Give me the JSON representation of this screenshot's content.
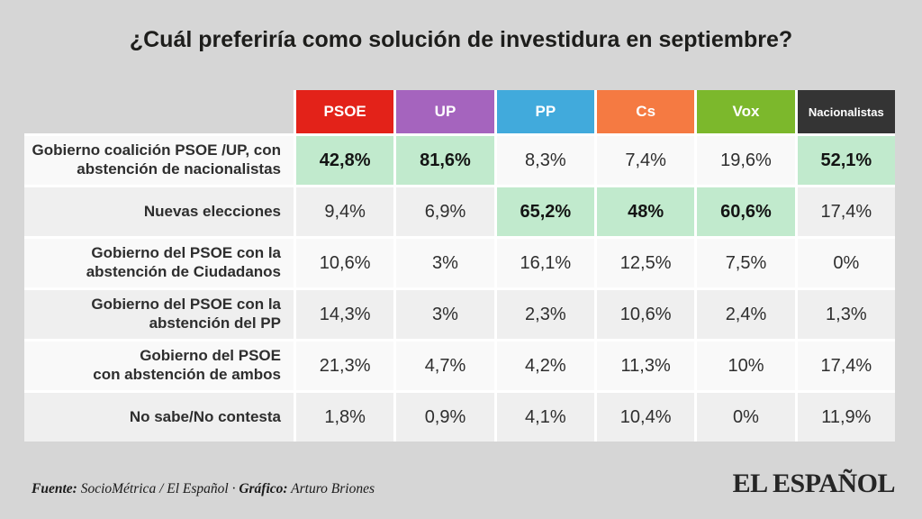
{
  "title": "¿Cuál preferiría como solución de investidura en septiembre?",
  "chart_data": {
    "type": "table",
    "title": "¿Cuál preferiría como solución de investidura en septiembre?",
    "highlight_color": "#c1eacd",
    "columns": [
      {
        "id": "psoe",
        "label": "PSOE",
        "color": "#e32219"
      },
      {
        "id": "up",
        "label": "UP",
        "color": "#a564be"
      },
      {
        "id": "pp",
        "label": "PP",
        "color": "#41aadc"
      },
      {
        "id": "cs",
        "label": "Cs",
        "color": "#f57a42"
      },
      {
        "id": "vox",
        "label": "Vox",
        "color": "#7cb82c"
      },
      {
        "id": "nacionalistas",
        "label": "Nacionalistas",
        "color": "#343434"
      }
    ],
    "rows": [
      {
        "label": "Gobierno coalición PSOE /UP, con\nabstención de nacionalistas",
        "values": [
          "42,8%",
          "81,6%",
          "8,3%",
          "7,4%",
          "19,6%",
          "52,1%"
        ],
        "highlighted": [
          0,
          1,
          5
        ]
      },
      {
        "label": "Nuevas elecciones",
        "values": [
          "9,4%",
          "6,9%",
          "65,2%",
          "48%",
          "60,6%",
          "17,4%"
        ],
        "highlighted": [
          2,
          3,
          4
        ]
      },
      {
        "label": "Gobierno del PSOE con la\nabstención de Ciudadanos",
        "values": [
          "10,6%",
          "3%",
          "16,1%",
          "12,5%",
          "7,5%",
          "0%"
        ],
        "highlighted": []
      },
      {
        "label": "Gobierno del PSOE con la\nabstención del PP",
        "values": [
          "14,3%",
          "3%",
          "2,3%",
          "10,6%",
          "2,4%",
          "1,3%"
        ],
        "highlighted": []
      },
      {
        "label": "Gobierno del PSOE\ncon abstención de ambos",
        "values": [
          "21,3%",
          "4,7%",
          "4,2%",
          "11,3%",
          "10%",
          "17,4%"
        ],
        "highlighted": []
      },
      {
        "label": "No sabe/No contesta",
        "values": [
          "1,8%",
          "0,9%",
          "4,1%",
          "10,4%",
          "0%",
          "11,9%"
        ],
        "highlighted": []
      }
    ]
  },
  "footer": {
    "source_label": "Fuente:",
    "source_value": " SocioMétrica / El Español",
    "separator": " · ",
    "credit_label": "Gráfico:",
    "credit_value": " Arturo Briones"
  },
  "logo": "EL ESPAÑOL"
}
